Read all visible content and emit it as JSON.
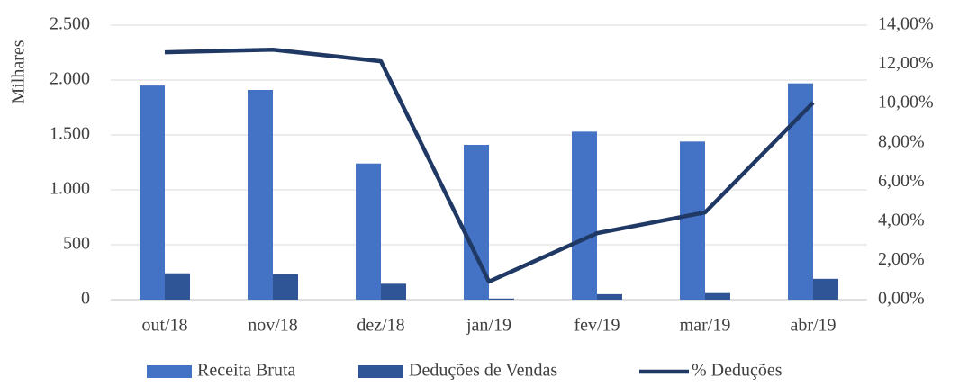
{
  "chart_data": {
    "type": "bar_line",
    "y_label": "Milhares",
    "categories": [
      "out/18",
      "nov/18",
      "dez/18",
      "jan/19",
      "fev/19",
      "mar/19",
      "abr/19"
    ],
    "series": [
      {
        "name": "Receita Bruta",
        "type": "bar",
        "color": "#4472c4",
        "values": [
          1950,
          1910,
          1240,
          1410,
          1530,
          1440,
          1970
        ]
      },
      {
        "name": "Deduções de Vendas",
        "type": "bar",
        "color": "#2f5597",
        "values": [
          240,
          235,
          145,
          10,
          50,
          60,
          190
        ]
      },
      {
        "name": "% Deduções",
        "type": "line",
        "axis": "y2",
        "color": "#1f3864",
        "values": [
          12.62,
          12.75,
          12.16,
          0.92,
          3.39,
          4.45,
          10.05
        ]
      }
    ],
    "ylim": [
      0,
      2500
    ],
    "yticks": [
      0,
      {
        "value": 500,
        "label": "500"
      },
      {
        "value": 1000,
        "label": "1.000"
      },
      {
        "value": 1500,
        "label": "1.500"
      },
      {
        "value": 2000,
        "label": "2.000"
      },
      {
        "value": 2500,
        "label": "2.500"
      }
    ],
    "y2lim": [
      0,
      14
    ],
    "y2ticks": [
      {
        "value": 0,
        "label": "0,00%"
      },
      {
        "value": 2,
        "label": "2,00%"
      },
      {
        "value": 4,
        "label": "4,00%"
      },
      {
        "value": 6,
        "label": "6,00%"
      },
      {
        "value": 8,
        "label": "8,00%"
      },
      {
        "value": 10,
        "label": "10,00%"
      },
      {
        "value": 12,
        "label": "12,00%"
      },
      {
        "value": 14,
        "label": "14,00%"
      }
    ],
    "grid": true,
    "legend": "bottom"
  }
}
